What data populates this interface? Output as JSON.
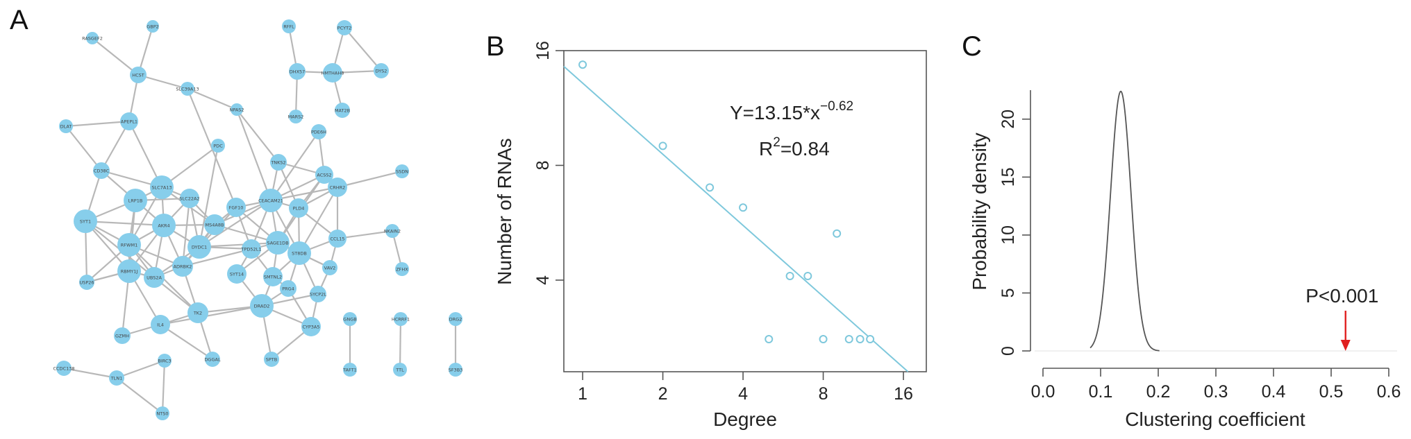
{
  "panel_labels": {
    "a": "A",
    "b": "B",
    "c": "C"
  },
  "colors": {
    "node": "#87ceeb",
    "edge": "#b8b8b8",
    "fit_line": "#7ec8dc",
    "density_line": "#555555",
    "arrow": "#e02020"
  },
  "chart_data": [
    {
      "type": "network",
      "panel": "A",
      "nodes": [
        {
          "label": "RASGEF2"
        },
        {
          "label": "GBP2"
        },
        {
          "label": "HCST"
        },
        {
          "label": "SLC39A13"
        },
        {
          "label": "NPAS2"
        },
        {
          "label": "APEPL1"
        },
        {
          "label": "DLAT"
        },
        {
          "label": "CD38C"
        },
        {
          "label": "SLC7A13"
        },
        {
          "label": "LRP1B"
        },
        {
          "label": "SLC22A2"
        },
        {
          "label": "SYT1"
        },
        {
          "label": "AKR4"
        },
        {
          "label": "MS4A8B"
        },
        {
          "label": "RFWM1"
        },
        {
          "label": "DYDC1"
        },
        {
          "label": "RBMY1J"
        },
        {
          "label": "UBS2A"
        },
        {
          "label": "ADRBK2"
        },
        {
          "label": "USP26"
        },
        {
          "label": "PDC"
        },
        {
          "label": "FGF10"
        },
        {
          "label": "TNKS2"
        },
        {
          "label": "PDE6H"
        },
        {
          "label": "ACSS2"
        },
        {
          "label": "CEACAM21"
        },
        {
          "label": "CRHR2"
        },
        {
          "label": "PLD4"
        },
        {
          "label": "CCL15"
        },
        {
          "label": "SAGE1DB"
        },
        {
          "label": "TPD52L1"
        },
        {
          "label": "ST8DB"
        },
        {
          "label": "SYT14"
        },
        {
          "label": "SMTNL2"
        },
        {
          "label": "VAV2"
        },
        {
          "label": "PRG4"
        },
        {
          "label": "SYCP2L"
        },
        {
          "label": "DRAD2"
        },
        {
          "label": "CYP3A5"
        },
        {
          "label": "TK2"
        },
        {
          "label": "IL4"
        },
        {
          "label": "GZMH"
        },
        {
          "label": "DGGAL"
        },
        {
          "label": "SPTB"
        },
        {
          "label": "SSDN"
        },
        {
          "label": "NKAIN2"
        },
        {
          "label": "ZFHX"
        },
        {
          "label": "RFFL"
        },
        {
          "label": "PCYT2"
        },
        {
          "label": "DHX57"
        },
        {
          "label": "HMTHAH8"
        },
        {
          "label": "DYS2"
        },
        {
          "label": "MARS2"
        },
        {
          "label": "MAT2B"
        },
        {
          "label": "CCDC138"
        },
        {
          "label": "TLN1"
        },
        {
          "label": "BIRC3"
        },
        {
          "label": "NTS0"
        },
        {
          "label": "GNGB"
        },
        {
          "label": "TAFT1"
        },
        {
          "label": "HCRRF1"
        },
        {
          "label": "TTL"
        },
        {
          "label": "DRG2"
        },
        {
          "label": "SF3B3"
        }
      ]
    },
    {
      "type": "scatter",
      "panel": "B",
      "xlabel": "Degree",
      "ylabel": "Number of RNAs",
      "x_scale": "log2",
      "y_scale": "log2",
      "x_ticks": [
        1,
        2,
        4,
        8,
        16
      ],
      "y_ticks": [
        4,
        8,
        16
      ],
      "xlim": [
        0.85,
        19.5
      ],
      "ylim": [
        2.3,
        16.0
      ],
      "points": [
        {
          "x": 1,
          "y": 14.7
        },
        {
          "x": 2,
          "y": 9.0
        },
        {
          "x": 3,
          "y": 7.0
        },
        {
          "x": 4,
          "y": 6.2
        },
        {
          "x": 5,
          "y": 2.8
        },
        {
          "x": 6,
          "y": 4.1
        },
        {
          "x": 7,
          "y": 4.1
        },
        {
          "x": 8,
          "y": 2.8
        },
        {
          "x": 9,
          "y": 5.3
        },
        {
          "x": 10,
          "y": 2.8
        },
        {
          "x": 11,
          "y": 2.8
        },
        {
          "x": 12,
          "y": 2.8
        }
      ],
      "fit": {
        "a": 13.15,
        "b": -0.62
      },
      "equation": {
        "prefix": "Y=13.15*x",
        "exponent": "−0.62"
      },
      "r2": {
        "prefix": "R",
        "sup": "2",
        "suffix": "=0.84"
      }
    },
    {
      "type": "line",
      "panel": "C",
      "xlabel": "Clustering coefficient",
      "ylabel": "Probability density",
      "x_ticks": [
        "0.0",
        "0.1",
        "0.2",
        "0.3",
        "0.4",
        "0.5",
        "0.6"
      ],
      "y_ticks": [
        "0",
        "5",
        "10",
        "15",
        "20"
      ],
      "xlim": [
        0.0,
        0.6
      ],
      "ylim": [
        0,
        22.5
      ],
      "density": {
        "mean": 0.135,
        "sd": 0.0178,
        "peak": 22.4,
        "x_min": 0.082,
        "x_max": 0.202
      },
      "annotation": {
        "text": "P<0.001",
        "x": 0.525
      }
    }
  ]
}
